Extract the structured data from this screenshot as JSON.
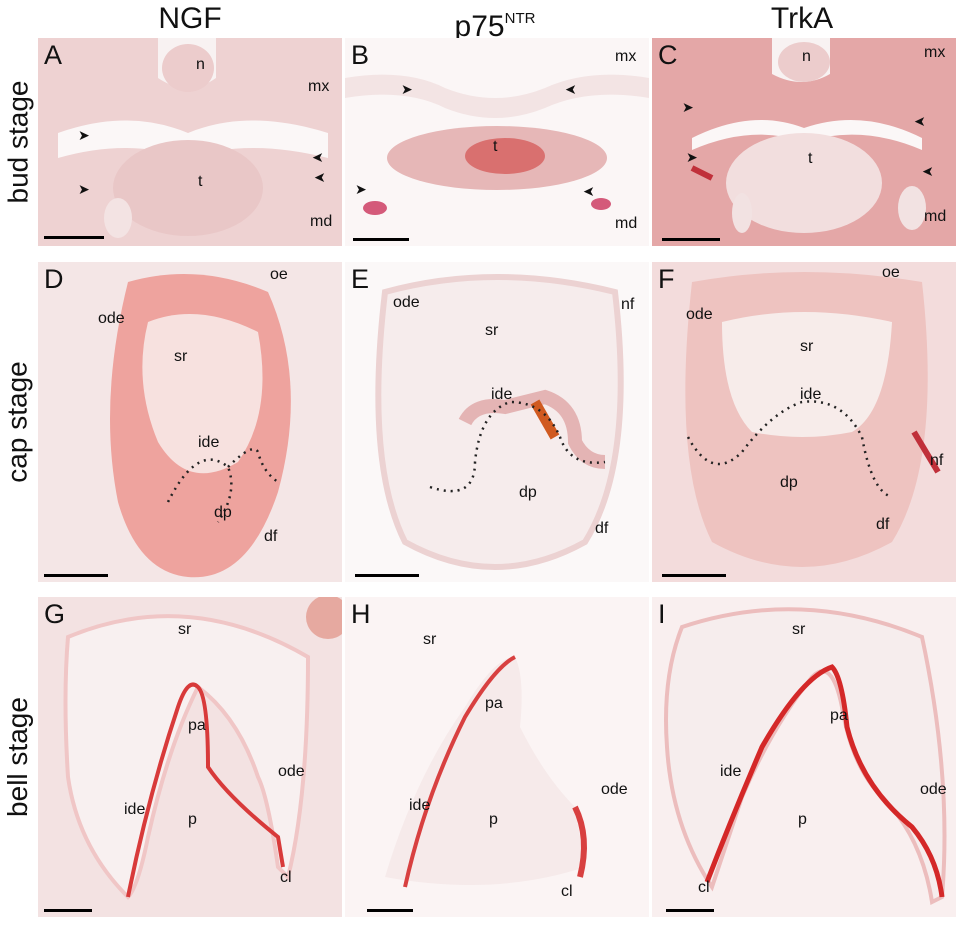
{
  "columns": {
    "ngf": "NGF",
    "p75": "p75",
    "p75_sup": "NTR",
    "trka": "TrkA"
  },
  "rows": {
    "bud": "bud stage",
    "cap": "cap stage",
    "bell": "bell stage"
  },
  "panels": {
    "A": {
      "letter": "A",
      "n": "n",
      "mx": "mx",
      "t": "t",
      "md": "md"
    },
    "B": {
      "letter": "B",
      "mx": "mx",
      "t": "t",
      "md": "md"
    },
    "C": {
      "letter": "C",
      "n": "n",
      "mx": "mx",
      "t": "t",
      "md": "md"
    },
    "D": {
      "letter": "D",
      "oe": "oe",
      "ode": "ode",
      "sr": "sr",
      "ide": "ide",
      "dp": "dp",
      "df": "df"
    },
    "E": {
      "letter": "E",
      "ode": "ode",
      "nf": "nf",
      "sr": "sr",
      "ide": "ide",
      "dp": "dp",
      "df": "df"
    },
    "F": {
      "letter": "F",
      "oe": "oe",
      "ode": "ode",
      "sr": "sr",
      "ide": "ide",
      "dp": "dp",
      "nf": "nf",
      "df": "df"
    },
    "G": {
      "letter": "G",
      "sr": "sr",
      "pa": "pa",
      "ode": "ode",
      "ide": "ide",
      "p": "p",
      "cl": "cl"
    },
    "H": {
      "letter": "H",
      "sr": "sr",
      "pa": "pa",
      "ode": "ode",
      "ide": "ide",
      "p": "p",
      "cl": "cl"
    },
    "I": {
      "letter": "I",
      "sr": "sr",
      "pa": "pa",
      "ide": "ide",
      "ode": "ode",
      "p": "p",
      "cl": "cl"
    }
  },
  "colors": {
    "stain": "#d23a3a",
    "tissue": "#efd6d6",
    "background": "#f6eeee",
    "scalebar": "#000000"
  }
}
